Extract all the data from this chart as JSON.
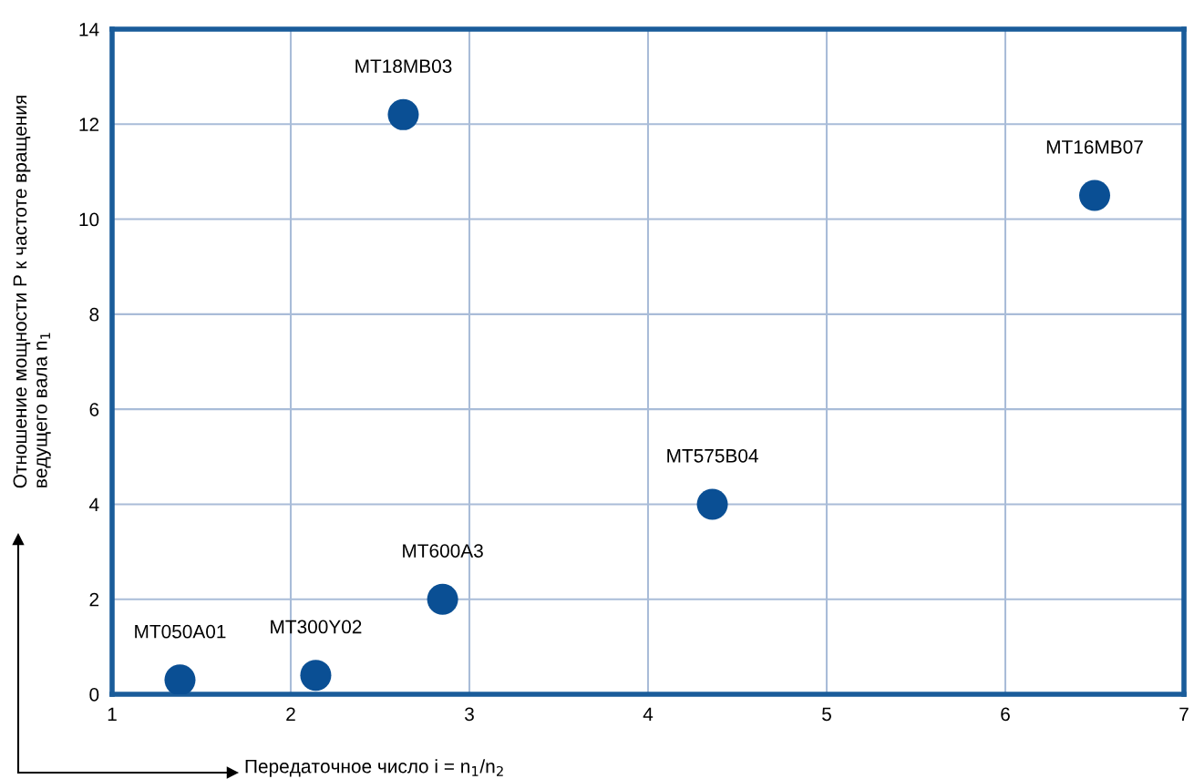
{
  "chart_data": {
    "type": "scatter",
    "xlabel": "Передаточное число i = n$_{1}$/n$_{2}$",
    "ylabel": "Отношение мощности P к частоте вращения\nведущего вала n$_{1}$",
    "x": [
      1.38,
      2.14,
      2.85,
      2.63,
      4.36,
      6.5
    ],
    "series": [
      {
        "color": "#0a4f94",
        "values": [
          0.3,
          0.4,
          2.0,
          12.2,
          4.0,
          10.5
        ]
      }
    ],
    "annotations": [
      {
        "text": "MT050A01",
        "x": 1.38,
        "y": 0.3
      },
      {
        "text": "MT300Y02",
        "x": 2.14,
        "y": 0.4
      },
      {
        "text": "MT600A3",
        "x": 2.85,
        "y": 2.0
      },
      {
        "text": "MT18MB03",
        "x": 2.63,
        "y": 12.2
      },
      {
        "text": "MT575B04",
        "x": 4.36,
        "y": 4.0
      },
      {
        "text": "MT16MB07",
        "x": 6.5,
        "y": 10.5
      }
    ],
    "xlim": [
      1,
      7
    ],
    "ylim": [
      0,
      14
    ],
    "xticks": [
      1,
      2,
      3,
      4,
      5,
      6,
      7
    ],
    "yticks": [
      0,
      2,
      4,
      6,
      8,
      10,
      12,
      14
    ],
    "grid": true,
    "marker": "circle"
  }
}
